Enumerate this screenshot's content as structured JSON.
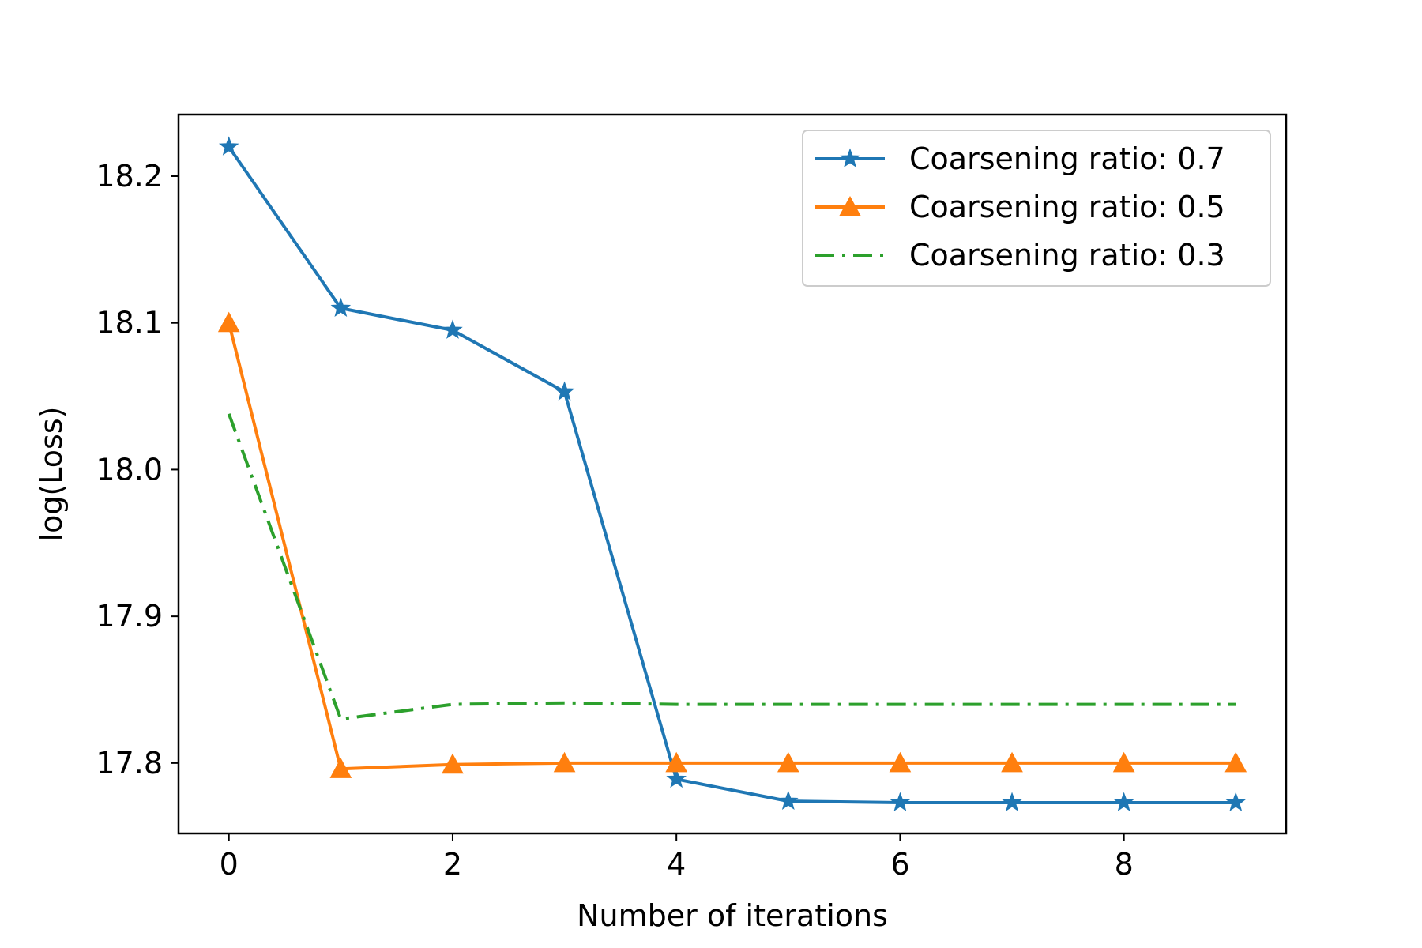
{
  "chart_data": {
    "type": "line",
    "title": "",
    "xlabel": "Number of iterations",
    "ylabel": "log(Loss)",
    "xlim": [
      -0.45,
      9.45
    ],
    "ylim": [
      17.752,
      18.242
    ],
    "xticks": [
      0,
      2,
      4,
      6,
      8
    ],
    "xtick_labels": [
      "0",
      "2",
      "4",
      "6",
      "8"
    ],
    "yticks": [
      17.8,
      17.9,
      18.0,
      18.1,
      18.2
    ],
    "ytick_labels": [
      "17.8",
      "17.9",
      "18.0",
      "18.1",
      "18.2"
    ],
    "x": [
      0,
      1,
      2,
      3,
      4,
      5,
      6,
      7,
      8,
      9
    ],
    "grid": false,
    "legend_position": "top-right",
    "series": [
      {
        "name": "Coarsening ratio: 0.7",
        "color": "#1f77b4",
        "marker": "star",
        "linestyle": "solid",
        "values": [
          18.22,
          18.11,
          18.095,
          18.053,
          17.789,
          17.774,
          17.773,
          17.773,
          17.773,
          17.773
        ]
      },
      {
        "name": "Coarsening ratio: 0.5",
        "color": "#ff7f0e",
        "marker": "triangle",
        "linestyle": "solid",
        "values": [
          18.1,
          17.796,
          17.799,
          17.8,
          17.8,
          17.8,
          17.8,
          17.8,
          17.8,
          17.8
        ]
      },
      {
        "name": "Coarsening ratio: 0.3",
        "color": "#2ca02c",
        "marker": "none",
        "linestyle": "dashdot",
        "values": [
          18.038,
          17.83,
          17.84,
          17.841,
          17.84,
          17.84,
          17.84,
          17.84,
          17.84,
          17.84
        ]
      }
    ]
  }
}
